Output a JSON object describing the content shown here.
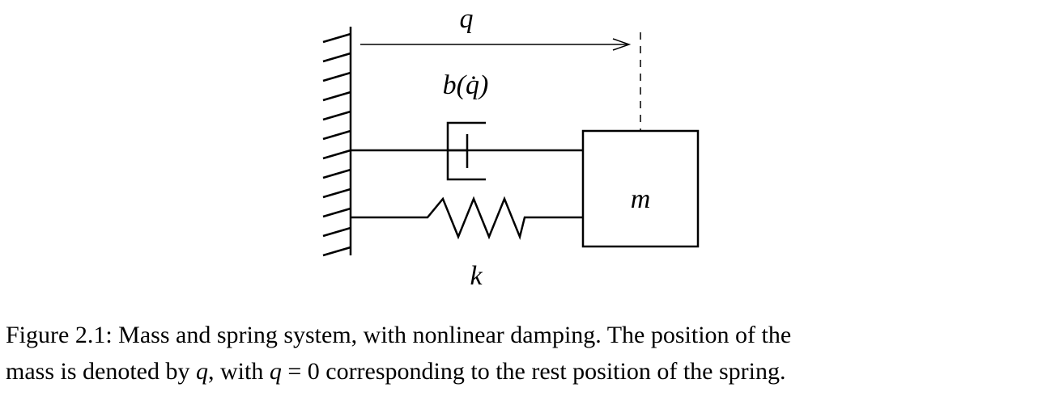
{
  "diagram": {
    "position_label": "q",
    "damper_label": "b(q̇)",
    "mass_label": "m",
    "spring_label": "k"
  },
  "caption": {
    "prefix": "Figure 2.1:",
    "line1": "Mass and spring system, with nonlinear damping. The position of the",
    "line2_a": "mass is denoted by",
    "line2_q1": "q",
    "line2_b": ", with",
    "line2_q2": "q",
    "line2_c": "= 0 corresponding to the rest position of the spring."
  }
}
